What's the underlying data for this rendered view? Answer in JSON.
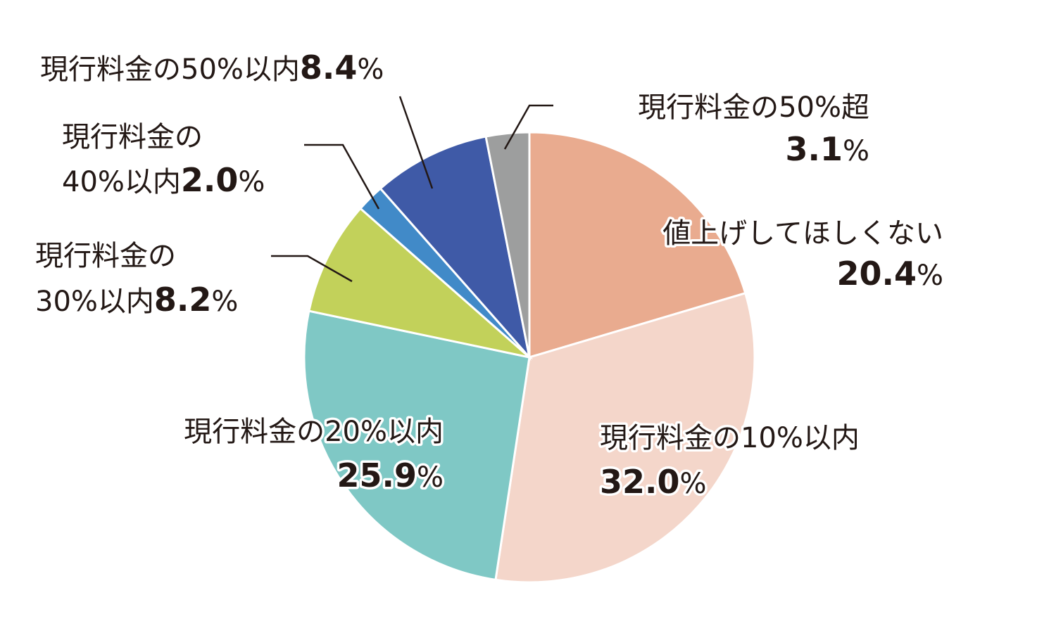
{
  "chart_data": {
    "type": "pie",
    "title": "",
    "unit": "%",
    "slices": [
      {
        "label": "値上げしてほしくない",
        "value": 20.4,
        "display": "20.4",
        "color": "#e9ab8f"
      },
      {
        "label": "現行料金の10%以内",
        "value": 32.0,
        "display": "32.0",
        "color": "#f4d6ca"
      },
      {
        "label": "現行料金の20%以内",
        "value": 25.9,
        "display": "25.9",
        "color": "#7fc8c5"
      },
      {
        "label": "現行料金の30%以内",
        "value": 8.2,
        "display": "8.2",
        "color": "#c2d15a"
      },
      {
        "label": "現行料金の40%以内",
        "value": 2.0,
        "display": "2.0",
        "color": "#418ac8"
      },
      {
        "label": "現行料金の50%以内",
        "value": 8.4,
        "display": "8.4",
        "color": "#3f5aa7"
      },
      {
        "label": "現行料金の50%超",
        "value": 3.1,
        "display": "3.1",
        "color": "#9d9e9e"
      }
    ],
    "start": "12 o'clock",
    "direction": "clockwise",
    "legend": "none"
  }
}
